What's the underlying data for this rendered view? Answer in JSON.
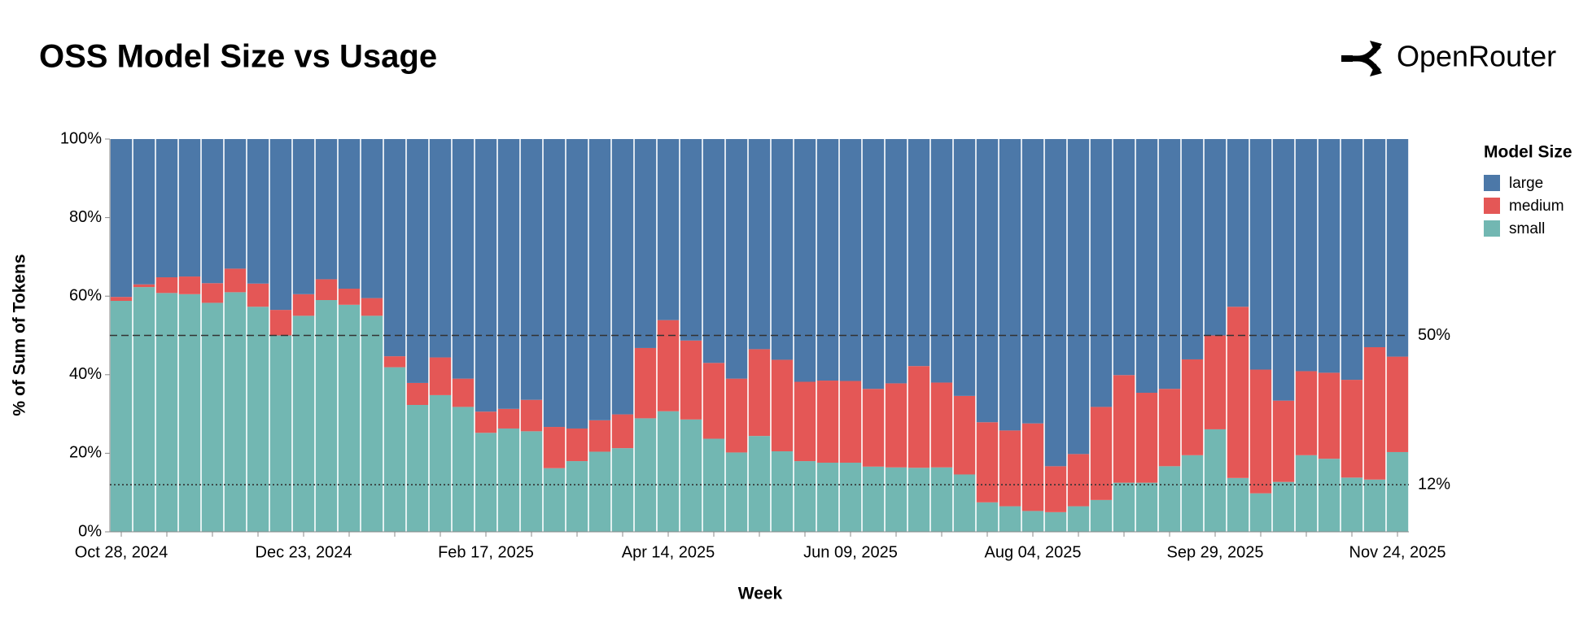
{
  "brand": "OpenRouter",
  "chart_data": {
    "type": "stacked_bar",
    "title": "OSS Model Size vs Usage",
    "x_label": "Week",
    "y_label": "% of Sum of Tokens",
    "legend_title": "Model Size",
    "categories": [
      "Oct 28, 2024",
      null,
      null,
      null,
      null,
      null,
      null,
      null,
      "Dec 23, 2024",
      null,
      null,
      null,
      null,
      null,
      null,
      null,
      "Feb 17, 2025",
      null,
      null,
      null,
      null,
      null,
      null,
      null,
      "Apr 14, 2025",
      null,
      null,
      null,
      null,
      null,
      null,
      null,
      "Jun 09, 2025",
      null,
      null,
      null,
      null,
      null,
      null,
      null,
      "Aug 04, 2025",
      null,
      null,
      null,
      null,
      null,
      null,
      null,
      "Sep 29, 2025",
      null,
      null,
      null,
      null,
      null,
      null,
      null,
      "Nov 24, 2025"
    ],
    "series": [
      {
        "name": "small",
        "color": "#72b7b2",
        "values": [
          58.8,
          62.3,
          60.8,
          60.5,
          58.3,
          61,
          57.3,
          50,
          55,
          59,
          57.8,
          55,
          41.9,
          32.3,
          34.8,
          31.8,
          25.2,
          26.3,
          25.6,
          16.2,
          18,
          20.4,
          21.3,
          28.9,
          30.7,
          28.6,
          23.7,
          20.2,
          24.4,
          20.5,
          18,
          17.6,
          17.6,
          16.6,
          16.4,
          16.3,
          16.4,
          14.6,
          7.5,
          6.5,
          5.3,
          5,
          6.5,
          8.1,
          12.5,
          12.5,
          16.7,
          19.5,
          26.1,
          13.7,
          9.8,
          12.7,
          19.5,
          18.6,
          13.8,
          13.3,
          20.3
        ]
      },
      {
        "name": "medium",
        "color": "#e45756",
        "values": [
          1.0,
          0.7,
          4.0,
          4.5,
          5.0,
          6.0,
          5.9,
          6.5,
          5.5,
          5.3,
          4.1,
          4.5,
          2.8,
          5.6,
          9.6,
          7.2,
          5.4,
          5.0,
          8.0,
          10.5,
          8.3,
          8.0,
          8.6,
          17.9,
          23.2,
          20.1,
          19.3,
          18.8,
          22.1,
          23.3,
          20.2,
          20.9,
          20.8,
          19.8,
          21.4,
          25.9,
          21.6,
          20.0,
          20.4,
          19.3,
          22.3,
          11.7,
          13.3,
          23.7,
          27.4,
          22.9,
          19.7,
          24.4,
          23.9,
          43.6,
          31.5,
          20.7,
          21.4,
          21.9,
          24.9,
          33.7,
          24.3
        ]
      },
      {
        "name": "large",
        "color": "#4c78a8",
        "values": [
          40.2,
          37,
          35.2,
          35,
          36.7,
          33,
          36.8,
          43.5,
          39.5,
          35.7,
          38.1,
          40.5,
          55.3,
          62.1,
          55.6,
          61,
          69.4,
          68.7,
          66.4,
          73.3,
          73.7,
          71.6,
          70.1,
          53.2,
          46.1,
          51.3,
          57,
          61,
          53.5,
          56.2,
          61.8,
          61.5,
          61.6,
          63.6,
          62.2,
          57.8,
          62,
          65.4,
          72.1,
          74.2,
          72.4,
          83.3,
          80.2,
          68.2,
          60.1,
          64.6,
          63.6,
          56.1,
          50,
          42.7,
          58.7,
          66.6,
          59.1,
          59.5,
          61.3,
          53,
          55.4
        ]
      }
    ],
    "ylim": [
      0,
      100
    ],
    "yticks": [
      {
        "value": 0,
        "label": "0%"
      },
      {
        "value": 20,
        "label": "20%"
      },
      {
        "value": 40,
        "label": "40%"
      },
      {
        "value": 60,
        "label": "60%"
      },
      {
        "value": 80,
        "label": "80%"
      },
      {
        "value": 100,
        "label": "100%"
      }
    ],
    "reference_lines": [
      {
        "value": 50,
        "label": "50%",
        "style": "dashed"
      },
      {
        "value": 12,
        "label": "12%",
        "style": "dotted"
      }
    ],
    "grid": false,
    "legend": "right"
  }
}
